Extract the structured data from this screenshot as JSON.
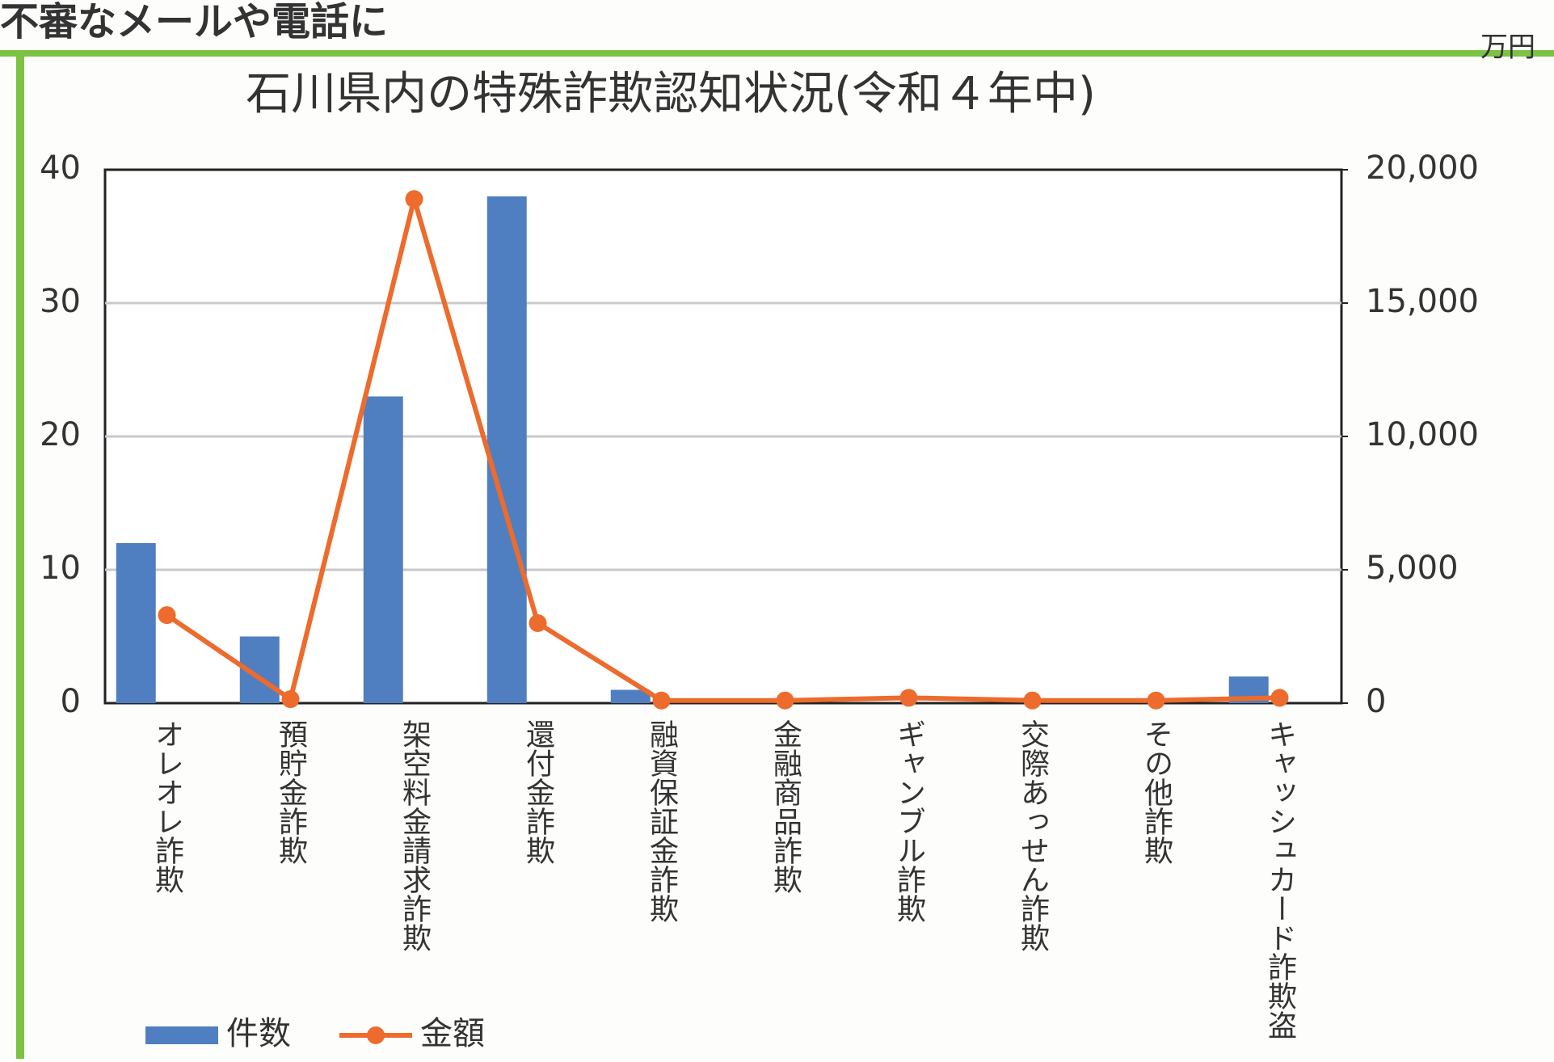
{
  "header": "不審なメールや電話に",
  "chart_data": {
    "type": "bar",
    "title": "石川県内の特殊詐欺認知状況(令和４年中)",
    "y2_unit": "万円",
    "categories": [
      "オレオレ詐欺",
      "預貯金詐欺",
      "架空料金請求詐欺",
      "還付金詐欺",
      "融資保証金詐欺",
      "金融商品詐欺",
      "ギャンブル詐欺",
      "交際あっせん詐欺",
      "その他詐欺",
      "キャッシュカード詐欺盗"
    ],
    "series": [
      {
        "name": "件数",
        "type": "bar",
        "color": "#4f7fc0",
        "values": [
          12,
          5,
          23,
          38,
          1,
          0,
          0,
          0,
          0,
          2
        ]
      },
      {
        "name": "金額",
        "type": "line",
        "axis": "y2",
        "color": "#ec6b2d",
        "values": [
          3300,
          150,
          18900,
          3000,
          100,
          100,
          200,
          100,
          100,
          200
        ]
      }
    ],
    "ylim": [
      0,
      40
    ],
    "yticks": [
      0,
      10,
      20,
      30,
      40
    ],
    "y2lim": [
      0,
      20000
    ],
    "y2ticks": [
      0,
      {
        "value": 5000,
        "label": "5,000"
      },
      {
        "value": 10000,
        "label": "10,000"
      },
      {
        "value": 15000,
        "label": "15,000"
      },
      {
        "value": 20000,
        "label": "20,000"
      }
    ],
    "grid": true
  }
}
